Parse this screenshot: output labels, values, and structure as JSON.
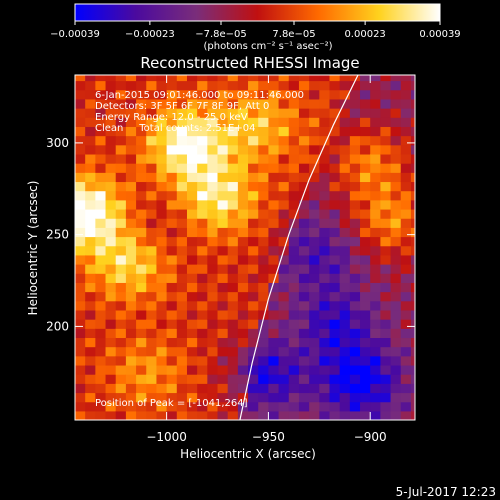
{
  "chart_data": {
    "type": "heatmap",
    "title": "Reconstructed RHESSI Image",
    "xlabel": "Heliocentric X (arcsec)",
    "ylabel": "Heliocentric Y (arcsec)",
    "xlim": [
      -1045,
      -878
    ],
    "ylim": [
      149,
      337
    ],
    "xticks": [
      -1000,
      -950,
      -900
    ],
    "xtick_labels": [
      "−1000",
      "−950",
      "−900"
    ],
    "yticks": [
      200,
      250,
      300
    ],
    "ytick_labels": [
      "200",
      "250",
      "300"
    ],
    "colorbar": {
      "min": -0.00039,
      "max": 0.00039,
      "ticks": [
        -0.00039,
        -0.00023,
        -7.8e-05,
        7.8e-05,
        0.00023,
        0.00039
      ],
      "tick_labels": [
        "−0.00039",
        "−0.00023",
        "−7.8e−05",
        "7.8e−05",
        "0.00023",
        "0.00039"
      ],
      "unit_label": "(photons cm⁻² s⁻¹ asec⁻²)",
      "colormap": [
        "#0000ff",
        "#4b0a9e",
        "#7a2d7a",
        "#c01010",
        "#ff6a00",
        "#ffd21e",
        "#ffffff"
      ]
    },
    "info_lines": [
      "6-Jan-2015 09:01:46.000 to 09:11:46.000",
      "Detectors: 3F 5F 6F 7F 8F 9F, Att 0",
      "Energy Range: 12.0 - 25.0 keV",
      "Clean     Total counts: 2.51E+04"
    ],
    "peak_label": "Position of Peak = [-1041,264]",
    "limb_curve": [
      [
        -964,
        149
      ],
      [
        -958,
        180
      ],
      [
        -950,
        215
      ],
      [
        -940,
        250
      ],
      [
        -930,
        280
      ],
      [
        -918,
        310
      ],
      [
        -906,
        337
      ]
    ],
    "hotspots": [
      {
        "x": -990,
        "y": 300,
        "value": 0.00035
      },
      {
        "x": -1040,
        "y": 262,
        "value": 0.00039
      },
      {
        "x": -975,
        "y": 270,
        "value": 0.00028
      },
      {
        "x": -1018,
        "y": 235,
        "value": 0.00025
      },
      {
        "x": -890,
        "y": 258,
        "value": 0.00024
      },
      {
        "x": -900,
        "y": 290,
        "value": 0.00022
      },
      {
        "x": -930,
        "y": 195,
        "value": 0.00012
      },
      {
        "x": -1010,
        "y": 175,
        "value": 0.00014
      },
      {
        "x": -955,
        "y": 310,
        "value": 0.0002
      }
    ],
    "coldspots": [
      {
        "x": -920,
        "y": 200,
        "value": -0.0003
      },
      {
        "x": -905,
        "y": 170,
        "value": -0.00032
      },
      {
        "x": -950,
        "y": 175,
        "value": -0.00026
      },
      {
        "x": -925,
        "y": 240,
        "value": -0.00018
      },
      {
        "x": -1005,
        "y": 255,
        "value": -8e-05
      }
    ]
  },
  "footer": {
    "date": "5-Jul-2017 12:23"
  }
}
